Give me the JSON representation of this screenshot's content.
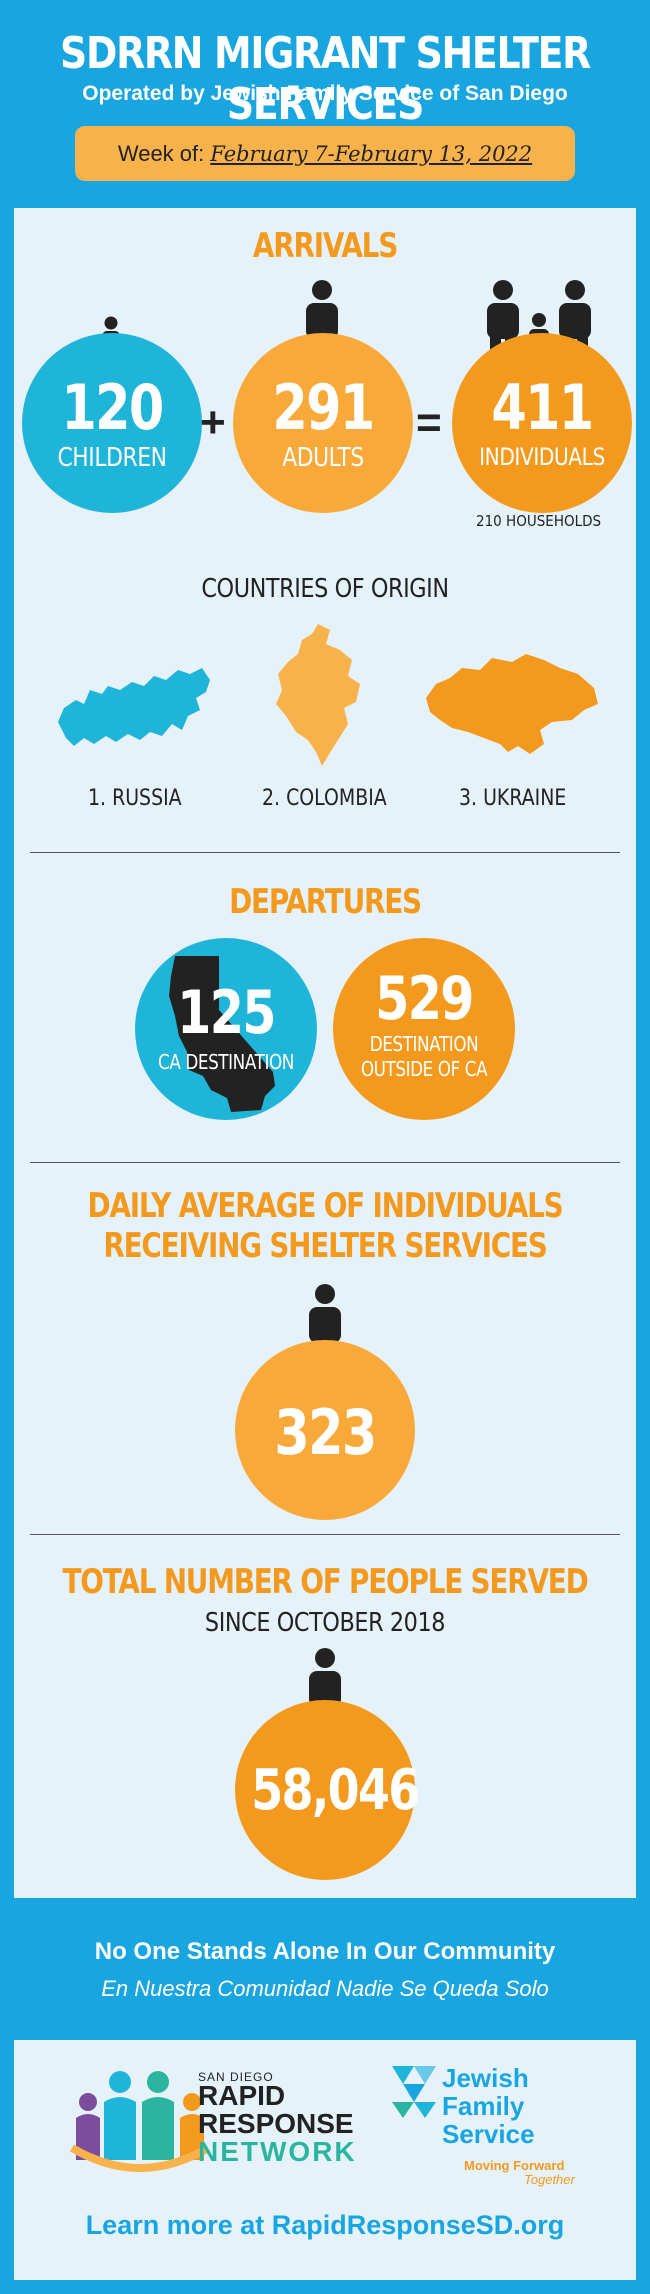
{
  "header": {
    "title": "SDRRN MIGRANT SHELTER SERVICES",
    "subtitle": "Operated by Jewish Family Service of San Diego",
    "week_label": "Week of:",
    "week_dates": "February 7-February 13, 2022"
  },
  "arrivals": {
    "title": "ARRIVALS",
    "children_value": "120",
    "children_label": "CHILDREN",
    "plus": "+",
    "adults_value": "291",
    "adults_label": "ADULTS",
    "equals": "=",
    "total_value": "411",
    "total_label": "INDIVIDUALS",
    "households": "210 HOUSEHOLDS"
  },
  "origin": {
    "title": "COUNTRIES OF ORIGIN",
    "countries": [
      "1. RUSSIA",
      "2. COLOMBIA",
      "3. UKRAINE"
    ]
  },
  "departures": {
    "title": "DEPARTURES",
    "ca_value": "125",
    "ca_label": "CA DESTINATION",
    "out_value": "529",
    "out_label_1": "DESTINATION",
    "out_label_2": "OUTSIDE OF CA"
  },
  "daily": {
    "title_1": "DAILY AVERAGE OF INDIVIDUALS",
    "title_2": "RECEIVING SHELTER SERVICES",
    "value": "323"
  },
  "total": {
    "title": "TOTAL NUMBER OF PEOPLE SERVED",
    "since": "SINCE OCTOBER 2018",
    "value": "58,046"
  },
  "slogan": {
    "english": "No One Stands Alone In Our Community",
    "spanish": "En Nuestra Comunidad Nadie Se Queda Solo"
  },
  "footer": {
    "rrn_small": "SAN DIEGO",
    "rrn_1": "RAPID",
    "rrn_2": "RESPONSE",
    "rrn_3": "NETWORK",
    "jfs_1": "Jewish",
    "jfs_2": "Family",
    "jfs_3": "Service",
    "jfs_tag_1": "Moving Forward",
    "jfs_tag_2": "Together",
    "url": "Learn more at RapidResponseSD.org"
  },
  "colors": {
    "blue": "#19a6e0",
    "cyan": "#1fb5d9",
    "orange": "#f39a1e",
    "yellow": "#f8b24c",
    "panel": "#e6f2fa"
  }
}
